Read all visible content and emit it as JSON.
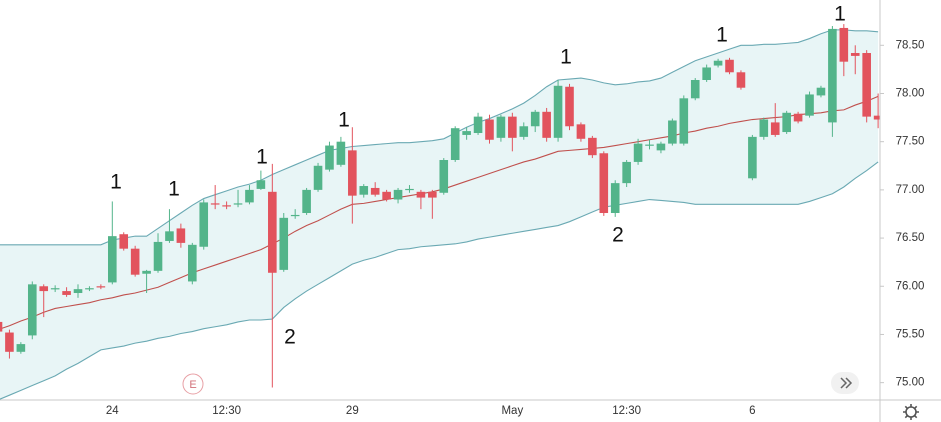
{
  "chart_data": {
    "type": "candlestick",
    "categories": [
      null,
      null,
      null,
      null,
      null,
      null,
      null,
      null,
      null,
      null,
      "24",
      null,
      null,
      null,
      null,
      null,
      null,
      null,
      null,
      null,
      "12:30",
      null,
      null,
      null,
      null,
      null,
      null,
      null,
      null,
      null,
      null,
      "29",
      null,
      null,
      null,
      null,
      null,
      null,
      null,
      null,
      null,
      null,
      null,
      null,
      null,
      "May",
      null,
      null,
      null,
      null,
      null,
      null,
      null,
      null,
      null,
      "12:30",
      null,
      null,
      null,
      null,
      null,
      null,
      null,
      null,
      null,
      null,
      "6",
      null,
      null,
      null,
      null,
      null,
      null,
      null,
      null,
      null,
      null,
      null
    ],
    "open": [
      75.63,
      75.52,
      75.32,
      75.49,
      76.0,
      75.97,
      75.95,
      75.93,
      75.97,
      76.0,
      76.04,
      76.54,
      76.39,
      76.13,
      76.16,
      76.47,
      76.6,
      76.05,
      76.41,
      76.86,
      76.84,
      76.85,
      76.87,
      77.01,
      76.98,
      76.17,
      76.73,
      76.76,
      77.0,
      77.21,
      77.26,
      77.41,
      76.95,
      77.02,
      76.98,
      76.9,
      77.0,
      76.98,
      76.98,
      76.97,
      77.31,
      77.57,
      77.59,
      77.73,
      77.54,
      77.76,
      77.55,
      77.66,
      77.81,
      77.54,
      78.07,
      77.68,
      77.54,
      77.38,
      76.76,
      77.07,
      77.29,
      77.47,
      77.41,
      77.48,
      77.48,
      77.95,
      78.14,
      78.29,
      78.35,
      78.22,
      77.12,
      77.55,
      77.7,
      77.6,
      77.79,
      77.77,
      77.98,
      77.7,
      78.68,
      78.42,
      78.42,
      77.77
    ],
    "high": [
      75.65,
      75.55,
      75.42,
      76.05,
      76.02,
      76.01,
      75.99,
      76.02,
      76.0,
      76.02,
      76.88,
      76.56,
      76.42,
      76.17,
      76.55,
      76.8,
      76.65,
      76.45,
      76.9,
      77.05,
      76.88,
      77.0,
      77.05,
      77.2,
      77.27,
      76.76,
      76.8,
      77.02,
      77.28,
      77.5,
      77.55,
      77.65,
      77.06,
      77.08,
      77.0,
      77.02,
      77.05,
      77.0,
      77.0,
      77.33,
      77.66,
      77.65,
      77.8,
      77.78,
      77.78,
      77.8,
      77.7,
      77.83,
      77.85,
      78.14,
      78.1,
      77.7,
      77.56,
      77.4,
      77.1,
      77.31,
      77.53,
      77.52,
      77.5,
      77.74,
      77.98,
      78.16,
      78.3,
      78.36,
      78.37,
      78.24,
      77.57,
      77.75,
      77.9,
      77.82,
      77.81,
      78.02,
      78.08,
      78.7,
      78.72,
      78.5,
      78.45,
      78.0
    ],
    "low": [
      75.5,
      75.25,
      75.3,
      75.45,
      75.68,
      75.94,
      75.89,
      75.88,
      75.95,
      75.97,
      76.02,
      76.37,
      76.1,
      75.93,
      76.14,
      76.45,
      76.4,
      76.02,
      76.38,
      76.8,
      76.8,
      76.82,
      76.85,
      77.0,
      74.95,
      76.15,
      76.7,
      76.74,
      76.98,
      77.19,
      77.24,
      76.65,
      76.92,
      76.93,
      76.88,
      76.86,
      76.97,
      76.8,
      76.7,
      76.95,
      77.29,
      77.52,
      77.57,
      77.48,
      77.5,
      77.4,
      77.52,
      77.6,
      77.5,
      77.5,
      77.62,
      77.5,
      77.33,
      76.73,
      76.72,
      77.03,
      77.26,
      77.42,
      77.38,
      77.46,
      77.46,
      77.93,
      78.12,
      78.27,
      78.2,
      78.04,
      77.1,
      77.52,
      77.55,
      77.58,
      77.69,
      77.75,
      77.96,
      77.55,
      78.18,
      78.2,
      77.7,
      77.64
    ],
    "close": [
      75.53,
      75.32,
      75.4,
      76.02,
      75.95,
      75.98,
      75.91,
      75.97,
      75.98,
      75.99,
      76.52,
      76.39,
      76.12,
      76.16,
      76.46,
      76.57,
      76.45,
      76.43,
      76.87,
      76.85,
      76.83,
      76.86,
      77.0,
      77.1,
      76.14,
      76.71,
      76.74,
      77.0,
      77.25,
      77.46,
      77.5,
      76.94,
      77.04,
      76.95,
      76.9,
      77.0,
      77.01,
      76.92,
      76.92,
      77.31,
      77.64,
      77.61,
      77.76,
      77.52,
      77.76,
      77.54,
      77.66,
      77.81,
      77.54,
      78.08,
      77.66,
      77.53,
      77.36,
      76.76,
      77.07,
      77.29,
      77.48,
      77.47,
      77.48,
      77.72,
      77.95,
      78.14,
      78.27,
      78.34,
      78.22,
      78.06,
      77.55,
      77.73,
      77.57,
      77.8,
      77.71,
      77.99,
      78.06,
      78.67,
      78.33,
      78.39,
      77.76,
      77.73
    ],
    "bands": {
      "upper": [
        76.43,
        76.43,
        76.43,
        76.43,
        76.43,
        76.43,
        76.43,
        76.43,
        76.43,
        76.43,
        76.48,
        76.5,
        76.52,
        76.52,
        76.6,
        76.68,
        76.76,
        76.84,
        76.91,
        76.95,
        76.99,
        77.03,
        77.06,
        77.1,
        77.16,
        77.21,
        77.26,
        77.31,
        77.36,
        77.41,
        77.43,
        77.45,
        77.46,
        77.47,
        77.48,
        77.49,
        77.49,
        77.5,
        77.51,
        77.53,
        77.59,
        77.65,
        77.7,
        77.74,
        77.79,
        77.84,
        77.9,
        77.98,
        78.07,
        78.14,
        78.15,
        78.16,
        78.14,
        78.11,
        78.09,
        78.1,
        78.12,
        78.13,
        78.16,
        78.22,
        78.28,
        78.34,
        78.38,
        78.42,
        78.46,
        78.5,
        78.5,
        78.51,
        78.51,
        78.52,
        78.53,
        78.57,
        78.62,
        78.66,
        78.66,
        78.65,
        78.65,
        78.64
      ],
      "middle": [
        75.55,
        75.59,
        75.64,
        75.68,
        75.73,
        75.77,
        75.79,
        75.81,
        75.83,
        75.86,
        75.88,
        75.91,
        75.93,
        75.96,
        75.99,
        76.04,
        76.09,
        76.14,
        76.18,
        76.22,
        76.26,
        76.3,
        76.34,
        76.38,
        76.44,
        76.5,
        76.57,
        76.63,
        76.68,
        76.74,
        76.8,
        76.85,
        76.86,
        76.88,
        76.9,
        76.92,
        76.94,
        76.96,
        76.98,
        77.01,
        77.05,
        77.09,
        77.13,
        77.17,
        77.21,
        77.25,
        77.29,
        77.32,
        77.36,
        77.4,
        77.41,
        77.42,
        77.43,
        77.44,
        77.46,
        77.48,
        77.5,
        77.52,
        77.54,
        77.56,
        77.59,
        77.61,
        77.64,
        77.66,
        77.69,
        77.71,
        77.73,
        77.74,
        77.75,
        77.76,
        77.78,
        77.79,
        77.8,
        77.82,
        77.83,
        77.88,
        77.92,
        77.97
      ],
      "lower": [
        74.82,
        74.87,
        74.92,
        74.97,
        75.02,
        75.07,
        75.14,
        75.2,
        75.27,
        75.34,
        75.36,
        75.38,
        75.41,
        75.43,
        75.46,
        75.48,
        75.51,
        75.53,
        75.56,
        75.58,
        75.6,
        75.63,
        75.65,
        75.65,
        75.66,
        75.78,
        75.87,
        75.95,
        76.02,
        76.09,
        76.16,
        76.23,
        76.27,
        76.3,
        76.34,
        76.38,
        76.39,
        76.41,
        76.42,
        76.43,
        76.44,
        76.46,
        76.49,
        76.51,
        76.53,
        76.55,
        76.57,
        76.59,
        76.61,
        76.63,
        76.67,
        76.72,
        76.77,
        76.82,
        76.84,
        76.86,
        76.88,
        76.9,
        76.89,
        76.88,
        76.87,
        76.85,
        76.85,
        76.85,
        76.85,
        76.85,
        76.85,
        76.85,
        76.85,
        76.85,
        76.85,
        76.88,
        76.92,
        76.96,
        77.03,
        77.12,
        77.2,
        77.29
      ]
    },
    "up_color": "#53b48a",
    "down_color": "#e2535d",
    "band_color": "#6aa9b3",
    "band_fill": "#e8f5f6",
    "middle_color": "#c0504d",
    "ylim": [
      74.82,
      78.97
    ],
    "yticks": [
      {
        "value": 75,
        "label": "75.00"
      },
      {
        "value": 75.5,
        "label": "75.50"
      },
      {
        "value": 76,
        "label": "76.00"
      },
      {
        "value": 76.5,
        "label": "76.50"
      },
      {
        "value": 77,
        "label": "77.00"
      },
      {
        "value": 77.5,
        "label": "77.50"
      },
      {
        "value": 78,
        "label": "78.00"
      },
      {
        "value": 78.5,
        "label": "78.50"
      }
    ],
    "grid": false,
    "annotations": [
      "1",
      "1",
      "1",
      "1",
      "1",
      "1",
      "1",
      "2",
      "2"
    ],
    "event_marker": "E"
  }
}
